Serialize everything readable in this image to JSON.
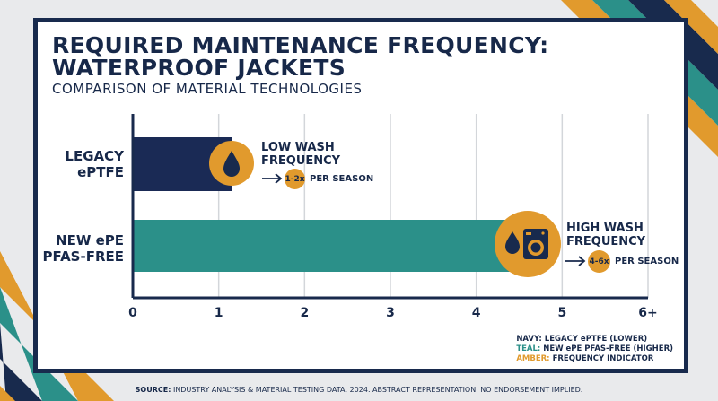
{
  "title": "REQUIRED MAINTENANCE FREQUENCY:\nWATERPROOF JACKETS",
  "subtitle": "COMPARISON OF MATERIAL TECHNOLOGIES",
  "chart_data": {
    "type": "bar",
    "orientation": "horizontal",
    "categories": [
      "LEGACY\nePTFE",
      "NEW ePE\nPFAS-FREE"
    ],
    "values": [
      1.15,
      4.45
    ],
    "colors": [
      "#1a2a55",
      "#2b9089"
    ],
    "xlim": [
      0,
      6
    ],
    "xticks": [
      "0",
      "1",
      "2",
      "3",
      "4",
      "5",
      "6+"
    ],
    "grid": true,
    "annotations": [
      {
        "title": "LOW WASH\nFREQUENCY",
        "badge": "1-2x",
        "text": "PER SEASON"
      },
      {
        "title": "HIGH WASH\nFREQUENCY",
        "badge": "4-6x",
        "text": "PER SEASON"
      }
    ]
  },
  "legend": {
    "placement": "bottom-right",
    "items": [
      {
        "key": "NAVY:",
        "text": "LEGACY ePTFE (LOWER)"
      },
      {
        "key": "TEAL:",
        "text": "NEW ePE PFAS-FREE (HIGHER)"
      },
      {
        "key": "AMBER:",
        "text": "FREQUENCY INDICATOR"
      }
    ]
  },
  "source": {
    "label": "SOURCE:",
    "text": "INDUSTRY ANALYSIS & MATERIAL TESTING DATA, 2024. ABSTRACT REPRESENTATION. NO ENDORSEMENT IMPLIED."
  },
  "colors": {
    "navy": "#182a4d",
    "teal": "#2b9089",
    "amber": "#e19a2d"
  },
  "icons": [
    "water-drop-icon",
    "washing-machine-icon",
    "arrow-right-icon"
  ]
}
